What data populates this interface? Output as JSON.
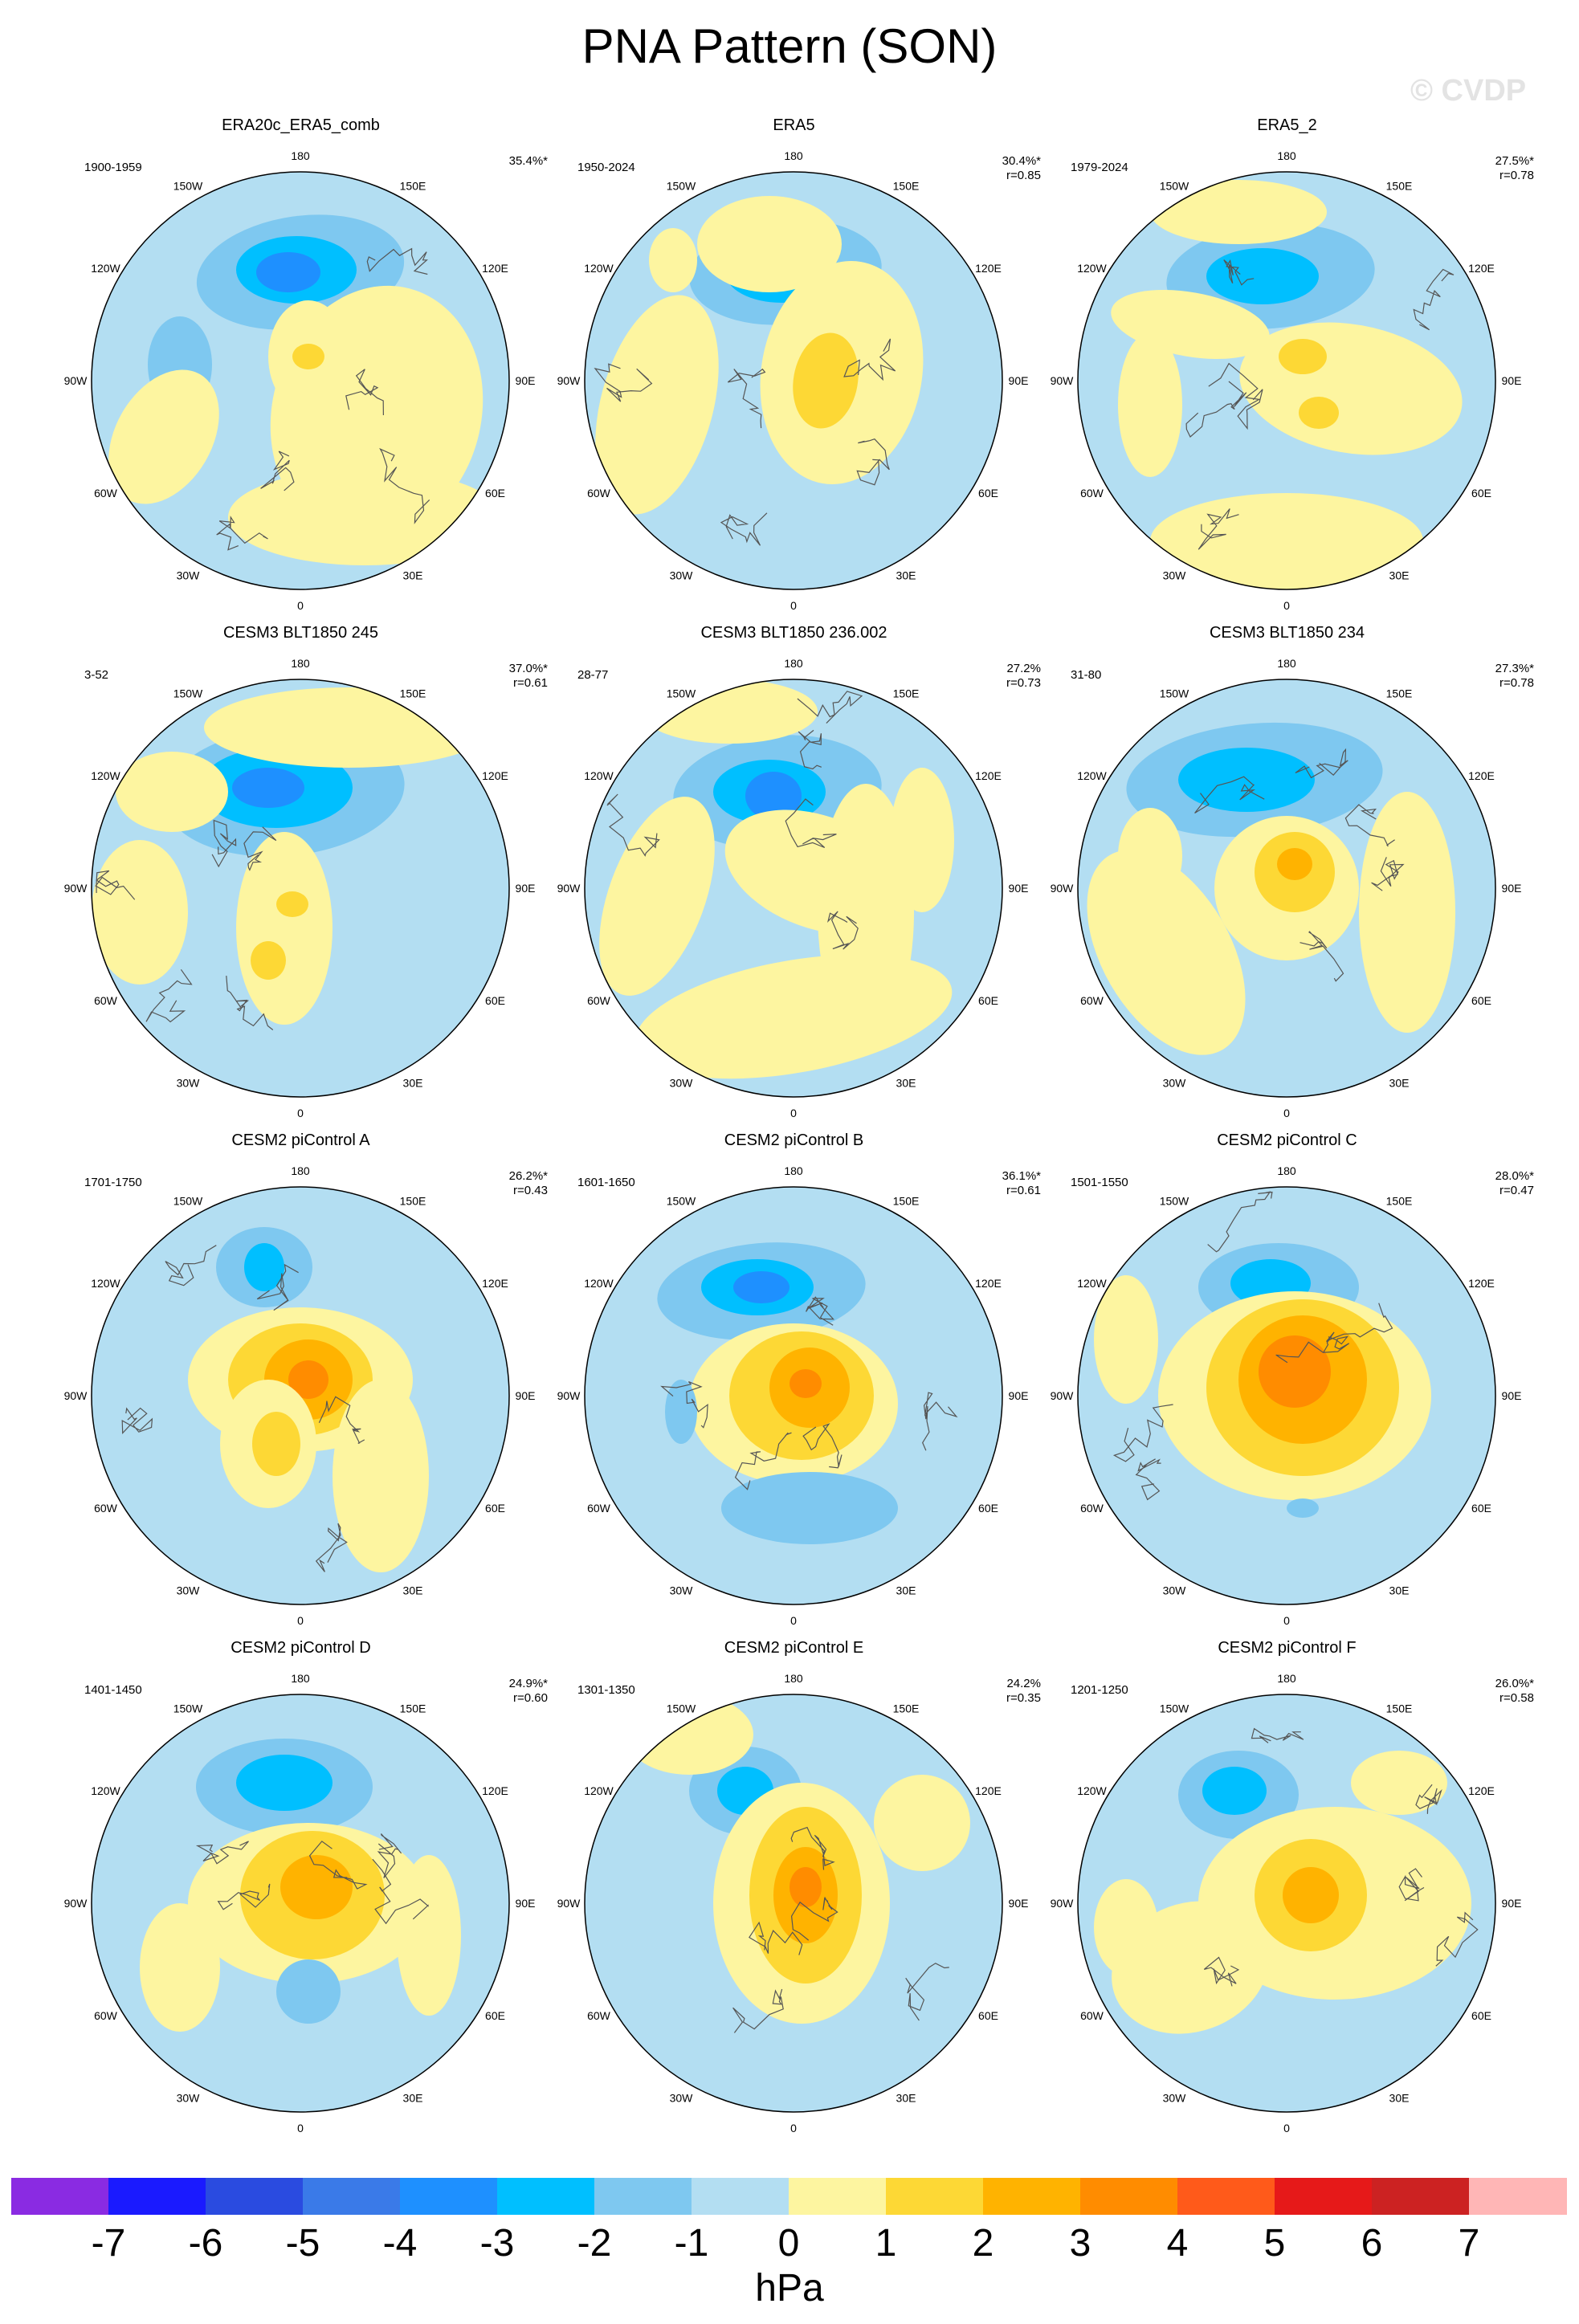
{
  "title": "PNA Pattern (SON)",
  "watermark": "© CVDP",
  "lon_labels": [
    "180",
    "150E",
    "120E",
    "90E",
    "60E",
    "30E",
    "0",
    "30W",
    "60W",
    "90W",
    "120W",
    "150W"
  ],
  "panels": [
    {
      "title": "ERA20c_ERA5_comb",
      "period": "1900-1959",
      "pct": "35.4%*",
      "r": ""
    },
    {
      "title": "ERA5",
      "period": "1950-2024",
      "pct": "30.4%*",
      "r": "r=0.85"
    },
    {
      "title": "ERA5_2",
      "period": "1979-2024",
      "pct": "27.5%*",
      "r": "r=0.78"
    },
    {
      "title": "CESM3 BLT1850 245",
      "period": "3-52",
      "pct": "37.0%*",
      "r": "r=0.61"
    },
    {
      "title": "CESM3 BLT1850 236.002",
      "period": "28-77",
      "pct": "27.2%",
      "r": "r=0.73"
    },
    {
      "title": "CESM3 BLT1850 234",
      "period": "31-80",
      "pct": "27.3%*",
      "r": "r=0.78"
    },
    {
      "title": "CESM2 piControl A",
      "period": "1701-1750",
      "pct": "26.2%*",
      "r": "r=0.43"
    },
    {
      "title": "CESM2 piControl B",
      "period": "1601-1650",
      "pct": "36.1%*",
      "r": "r=0.61"
    },
    {
      "title": "CESM2 piControl C",
      "period": "1501-1550",
      "pct": "28.0%*",
      "r": "r=0.47"
    },
    {
      "title": "CESM2 piControl D",
      "period": "1401-1450",
      "pct": "24.9%*",
      "r": "r=0.60"
    },
    {
      "title": "CESM2 piControl E",
      "period": "1301-1350",
      "pct": "24.2%",
      "r": "r=0.35"
    },
    {
      "title": "CESM2 piControl F",
      "period": "1201-1250",
      "pct": "26.0%*",
      "r": "r=0.58"
    }
  ],
  "colorbar": {
    "units": "hPa",
    "labels": [
      "-7",
      "-6",
      "-5",
      "-4",
      "-3",
      "-2",
      "-1",
      "0",
      "1",
      "2",
      "3",
      "4",
      "5",
      "6",
      "7"
    ],
    "colors": [
      "#8a2be2",
      "#1a1aff",
      "#2a4be0",
      "#3a7ae8",
      "#1e90ff",
      "#00bfff",
      "#7ec8f0",
      "#b3def2",
      "#fdf5a0",
      "#fdd835",
      "#ffb300",
      "#ff8c00",
      "#ff5a1a",
      "#e61919",
      "#cc2222",
      "#ffb6b6"
    ]
  }
}
